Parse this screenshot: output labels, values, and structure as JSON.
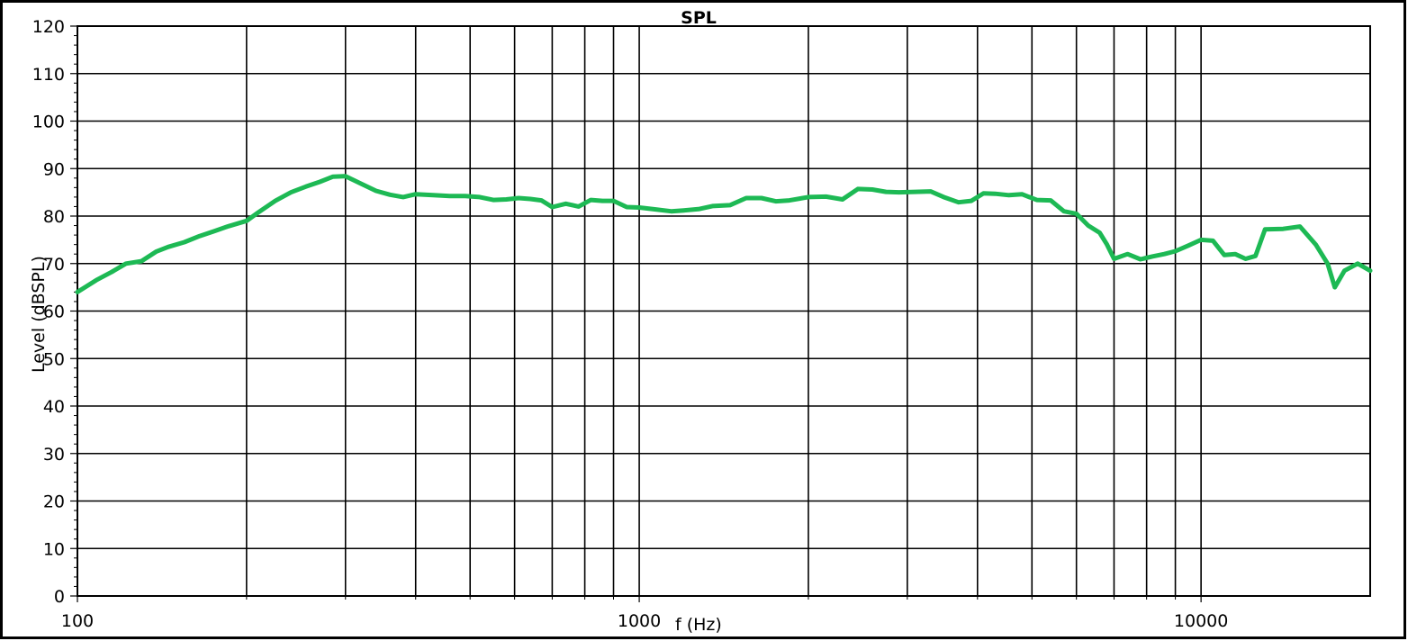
{
  "chart_data": {
    "type": "line",
    "title": "SPL",
    "xlabel": "f (Hz)",
    "ylabel": "Level (dBSPL)",
    "x_scale": "log",
    "xlim": [
      100,
      20000
    ],
    "ylim": [
      0,
      120
    ],
    "grid": true,
    "y_ticks": [
      "0",
      "10",
      "20",
      "30",
      "40",
      "50",
      "60",
      "70",
      "80",
      "90",
      "100",
      "110",
      "120"
    ],
    "x_tick_labels": [
      {
        "value": 100,
        "label": "100"
      },
      {
        "value": 1000,
        "label": "1000"
      },
      {
        "value": 10000,
        "label": "10000"
      }
    ],
    "x_gridlines": [
      200,
      300,
      400,
      500,
      600,
      700,
      800,
      900,
      1000,
      2000,
      3000,
      4000,
      5000,
      6000,
      7000,
      8000,
      9000,
      10000
    ],
    "colors": {
      "series": "#1db954",
      "grid": "#000000",
      "frame": "#000000"
    },
    "series": [
      {
        "x": [
          100,
          108,
          115,
          122,
          130,
          138,
          145,
          155,
          165,
          175,
          185,
          200,
          210,
          225,
          240,
          255,
          270,
          285,
          300,
          320,
          340,
          360,
          380,
          400,
          430,
          460,
          490,
          520,
          550,
          580,
          610,
          640,
          670,
          700,
          740,
          780,
          820,
          860,
          900,
          950,
          1000,
          1070,
          1140,
          1200,
          1280,
          1350,
          1450,
          1550,
          1650,
          1750,
          1850,
          2000,
          2150,
          2300,
          2450,
          2600,
          2750,
          2900,
          3100,
          3300,
          3500,
          3700,
          3900,
          4100,
          4300,
          4550,
          4800,
          5100,
          5400,
          5700,
          6000,
          6300,
          6600,
          6800,
          7000,
          7400,
          7800,
          8200,
          8600,
          9000,
          9500,
          10000,
          10500,
          11000,
          11500,
          12000,
          12500,
          13000,
          14000,
          15000,
          16000,
          16800,
          17300,
          18000,
          19000,
          20000
        ],
        "y": [
          64,
          66.5,
          68.2,
          70,
          70.5,
          72.5,
          73.5,
          74.5,
          75.8,
          76.8,
          77.8,
          79,
          80.8,
          83.2,
          85,
          86.2,
          87.2,
          88.3,
          88.4,
          86.8,
          85.3,
          84.5,
          84,
          84.6,
          84.4,
          84.2,
          84.2,
          84,
          83.4,
          83.5,
          83.8,
          83.6,
          83.3,
          81.9,
          82.6,
          82,
          83.4,
          83.2,
          83.2,
          81.9,
          81.8,
          81.4,
          81,
          81.2,
          81.5,
          82.1,
          82.3,
          83.8,
          83.8,
          83.1,
          83.3,
          84,
          84.1,
          83.5,
          85.7,
          85.6,
          85.1,
          85,
          85.1,
          85.2,
          83.9,
          82.9,
          83.2,
          84.8,
          84.7,
          84.4,
          84.6,
          83.4,
          83.3,
          81,
          80.5,
          78,
          76.5,
          74,
          71,
          72,
          70.9,
          71.5,
          72,
          72.6,
          73.8,
          75,
          74.8,
          71.8,
          72,
          71,
          71.6,
          77.2,
          77.3,
          77.8,
          74,
          70,
          65,
          68.5,
          70,
          68.5
        ]
      }
    ]
  }
}
